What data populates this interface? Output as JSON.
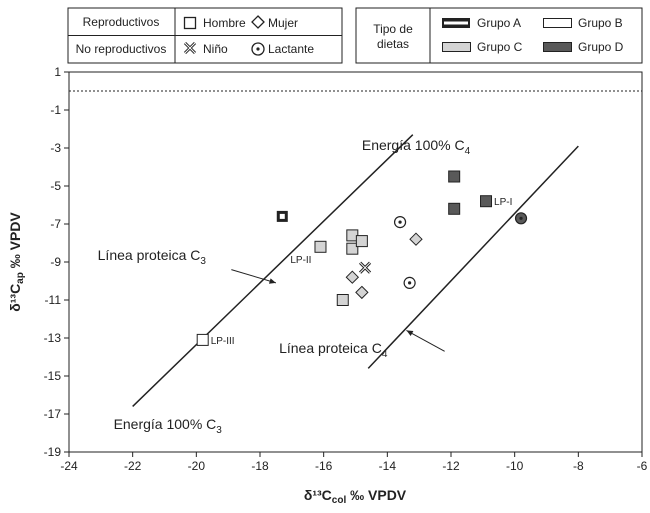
{
  "chart_data": {
    "type": "scatter",
    "xlabel": "δ¹³C",
    "xlabel_sub": "col",
    "xlabel_unit": " ‰ VPDV",
    "ylabel": "δ¹³C",
    "ylabel_sub": "ap",
    "ylabel_unit": " ‰ VPDV",
    "xlim": [
      -24,
      -6
    ],
    "ylim": [
      -19,
      1
    ],
    "x_ticks": [
      "-24",
      "-22",
      "-20",
      "-18",
      "-16",
      "-14",
      "-12",
      "-10",
      "-8",
      "-6"
    ],
    "y_ticks": [
      "1",
      "-1",
      "-3",
      "-5",
      "-7",
      "-9",
      "-11",
      "-13",
      "-15",
      "-17",
      "-19"
    ],
    "reference_line_y": 0,
    "lines": [
      {
        "name": "Línea proteica C3",
        "from": [
          -22.0,
          -16.6
        ],
        "to": [
          -13.2,
          -2.3
        ]
      },
      {
        "name": "Línea proteica C4",
        "from": [
          -14.6,
          -14.6
        ],
        "to": [
          -8.0,
          -2.9
        ]
      }
    ],
    "annotations": [
      {
        "text": "Energía 100% C",
        "sub": "4",
        "x": -14.8,
        "y": -3.1
      },
      {
        "text": "Línea proteica C",
        "sub": "3",
        "x": -23.1,
        "y": -8.9
      },
      {
        "text": "Línea proteica C",
        "sub": "4",
        "x": -17.4,
        "y": -13.8
      },
      {
        "text": "Energía 100% C",
        "sub": "3",
        "x": -22.6,
        "y": -17.8
      }
    ],
    "arrows": [
      {
        "from": [
          -18.9,
          -9.4
        ],
        "to": [
          -17.5,
          -10.1
        ]
      },
      {
        "from": [
          -12.2,
          -13.7
        ],
        "to": [
          -13.4,
          -12.6
        ]
      }
    ],
    "points": [
      {
        "x": -17.3,
        "y": -6.6,
        "shape": "square",
        "group": "A",
        "label": ""
      },
      {
        "x": -19.8,
        "y": -13.1,
        "shape": "square",
        "group": "B",
        "label": "LP-III"
      },
      {
        "x": -16.1,
        "y": -8.2,
        "shape": "square",
        "group": "C",
        "label": "LP-II"
      },
      {
        "x": -15.1,
        "y": -7.6,
        "shape": "square",
        "group": "C",
        "label": ""
      },
      {
        "x": -15.1,
        "y": -8.3,
        "shape": "square",
        "group": "C",
        "label": ""
      },
      {
        "x": -14.8,
        "y": -7.9,
        "shape": "square",
        "group": "C",
        "label": ""
      },
      {
        "x": -15.4,
        "y": -11.0,
        "shape": "square",
        "group": "C",
        "label": ""
      },
      {
        "x": -15.1,
        "y": -9.8,
        "shape": "diamond",
        "group": "C",
        "label": ""
      },
      {
        "x": -14.8,
        "y": -10.6,
        "shape": "diamond",
        "group": "C",
        "label": ""
      },
      {
        "x": -13.1,
        "y": -7.8,
        "shape": "diamond",
        "group": "C",
        "label": ""
      },
      {
        "x": -14.7,
        "y": -9.3,
        "shape": "cross",
        "group": "C",
        "label": ""
      },
      {
        "x": -13.6,
        "y": -6.9,
        "shape": "dotcircle",
        "group": "C",
        "label": ""
      },
      {
        "x": -13.3,
        "y": -10.1,
        "shape": "dotcircle",
        "group": "C",
        "label": ""
      },
      {
        "x": -11.9,
        "y": -4.5,
        "shape": "square",
        "group": "D",
        "label": ""
      },
      {
        "x": -11.9,
        "y": -6.2,
        "shape": "square",
        "group": "D",
        "label": ""
      },
      {
        "x": -10.9,
        "y": -5.8,
        "shape": "square",
        "group": "D",
        "label": "LP-I"
      },
      {
        "x": -9.8,
        "y": -6.7,
        "shape": "dotcircle",
        "group": "D",
        "label": ""
      }
    ]
  },
  "legend_left": {
    "rows": [
      {
        "title": "Reproductivos",
        "items": [
          {
            "icon": "square",
            "label": "Hombre"
          },
          {
            "icon": "diamond",
            "label": "Mujer"
          }
        ]
      },
      {
        "title": "No reproductivos",
        "items": [
          {
            "icon": "cross",
            "label": "Niño"
          },
          {
            "icon": "dotcircle",
            "label": "Lactante"
          }
        ]
      }
    ]
  },
  "legend_right": {
    "title_line1": "Tipo de",
    "title_line2": "dietas",
    "groups": [
      {
        "key": "A",
        "label": "Grupo A"
      },
      {
        "key": "B",
        "label": "Grupo B"
      },
      {
        "key": "C",
        "label": "Grupo C"
      },
      {
        "key": "D",
        "label": "Grupo D"
      }
    ]
  },
  "colors": {
    "axis": "#222222",
    "light_fill": "#d4d4d4",
    "dark_fill": "#595959",
    "white_fill": "#ffffff"
  }
}
